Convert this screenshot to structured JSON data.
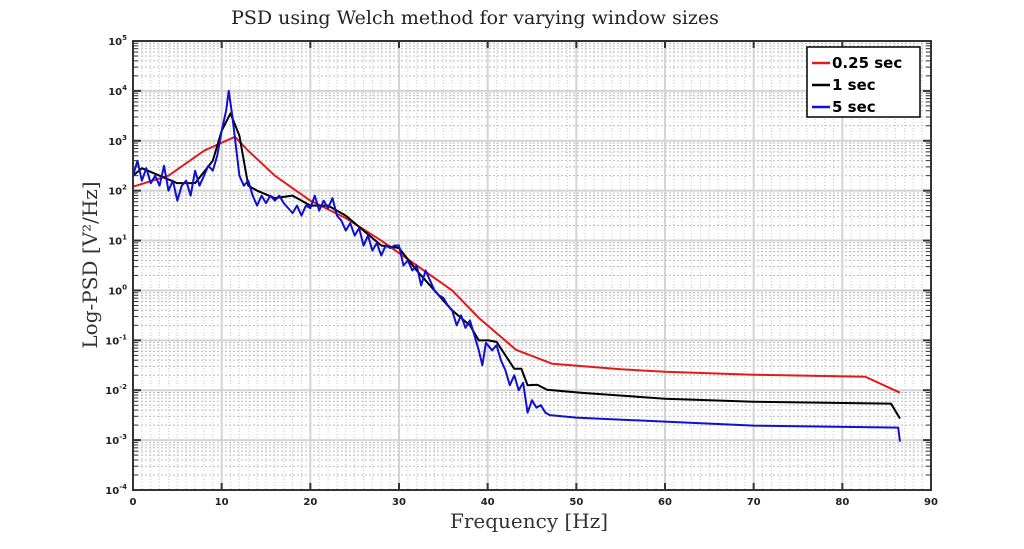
{
  "chart_data": {
    "type": "line",
    "title": "PSD using Welch method for varying window sizes",
    "xlabel": "Frequency [Hz]",
    "ylabel": "Log-PSD [V²/Hz]",
    "xlim": [
      0,
      90
    ],
    "ylim_log10": [
      -4,
      5
    ],
    "y_scale": "log",
    "grid": true,
    "legend_position": "top-right",
    "x_ticks": [
      "0",
      "10",
      "20",
      "30",
      "40",
      "50",
      "60",
      "70",
      "80",
      "90"
    ],
    "y_ticks": [
      {
        "base": "10",
        "exp": "-4"
      },
      {
        "base": "10",
        "exp": "-3"
      },
      {
        "base": "10",
        "exp": "-2"
      },
      {
        "base": "10",
        "exp": "-1"
      },
      {
        "base": "10",
        "exp": "0"
      },
      {
        "base": "10",
        "exp": "1"
      },
      {
        "base": "10",
        "exp": "2"
      },
      {
        "base": "10",
        "exp": "3"
      },
      {
        "base": "10",
        "exp": "4"
      },
      {
        "base": "10",
        "exp": "5"
      }
    ],
    "series": [
      {
        "name": "0.25 sec",
        "color": "#e41a1a",
        "x": [
          0,
          4,
          8,
          11.5,
          13,
          16,
          20,
          24,
          28,
          32,
          36,
          39,
          43.2,
          47.3,
          55,
          60,
          70,
          82.6,
          86.5
        ],
        "log10_y": [
          2.08,
          2.3,
          2.8,
          3.08,
          2.8,
          2.3,
          1.8,
          1.45,
          1.0,
          0.5,
          0.0,
          -0.55,
          -1.19,
          -1.47,
          -1.58,
          -1.63,
          -1.69,
          -1.73,
          -2.05
        ]
      },
      {
        "name": "1 sec",
        "color": "#000000",
        "x": [
          0,
          1,
          3,
          5,
          7,
          9,
          10,
          11,
          12,
          13,
          14,
          16,
          18,
          20,
          22,
          24,
          26,
          28,
          30,
          32,
          34,
          36,
          38,
          39,
          40.1,
          41,
          43,
          43.8,
          44.5,
          45.6,
          46.7,
          50.5,
          60,
          70,
          85.5,
          86.5
        ],
        "log10_y": [
          2.3,
          2.45,
          2.3,
          2.15,
          2.15,
          2.6,
          3.2,
          3.55,
          3.1,
          2.1,
          2.0,
          1.85,
          1.9,
          1.7,
          1.7,
          1.5,
          1.2,
          0.9,
          0.85,
          0.4,
          0.0,
          -0.4,
          -0.7,
          -1.0,
          -1.0,
          -1.03,
          -1.57,
          -1.57,
          -1.9,
          -1.89,
          -1.99,
          -2.05,
          -2.17,
          -2.23,
          -2.27,
          -2.57
        ]
      },
      {
        "name": "5 sec",
        "color": "#1010d0",
        "x": [
          0,
          0.5,
          1,
          1.5,
          2,
          2.5,
          3,
          3.5,
          4,
          4.5,
          5,
          5.5,
          6,
          6.5,
          7,
          7.5,
          8,
          8.5,
          9,
          9.5,
          10,
          10.5,
          10.8,
          11.2,
          11.6,
          12,
          12.5,
          13,
          13.5,
          14,
          14.5,
          15,
          15.5,
          16,
          16.5,
          17,
          18,
          18.5,
          19,
          19.5,
          20,
          20.5,
          21,
          21.5,
          22,
          22.5,
          23,
          23.5,
          24,
          24.5,
          25,
          25.5,
          26,
          26.5,
          27,
          27.5,
          28,
          28.5,
          29,
          29.5,
          30,
          30.5,
          31,
          31.5,
          32,
          32.5,
          33,
          33.5,
          34,
          34.5,
          35,
          35.5,
          36,
          36.5,
          37,
          37.5,
          38,
          38.5,
          39,
          39.4,
          39.8,
          40.5,
          41,
          41.5,
          42,
          42.5,
          43,
          43.5,
          44,
          44.5,
          45,
          45.5,
          46,
          46.5,
          47,
          50,
          60,
          70,
          86.3,
          86.5
        ],
        "log10_y": [
          2.3,
          2.6,
          2.2,
          2.45,
          2.15,
          2.3,
          2.1,
          2.5,
          2.0,
          2.2,
          1.8,
          2.1,
          2.2,
          1.9,
          2.4,
          2.1,
          2.3,
          2.5,
          2.4,
          2.7,
          3.2,
          3.6,
          4.0,
          3.5,
          2.9,
          2.3,
          2.1,
          2.2,
          1.9,
          1.7,
          1.9,
          1.75,
          1.9,
          1.8,
          1.9,
          1.75,
          1.55,
          1.7,
          1.5,
          1.7,
          1.65,
          1.9,
          1.6,
          1.8,
          1.65,
          1.85,
          1.5,
          1.4,
          1.2,
          1.35,
          1.1,
          1.25,
          0.9,
          1.1,
          0.8,
          0.95,
          0.7,
          0.9,
          0.85,
          0.9,
          0.9,
          0.5,
          0.6,
          0.4,
          0.5,
          0.1,
          0.4,
          0.2,
          0.0,
          -0.1,
          -0.15,
          -0.3,
          -0.4,
          -0.7,
          -0.5,
          -0.75,
          -0.6,
          -0.9,
          -1.2,
          -1.5,
          -1.05,
          -1.2,
          -1.1,
          -1.4,
          -1.6,
          -1.9,
          -1.7,
          -2.0,
          -1.85,
          -2.45,
          -2.2,
          -2.35,
          -2.3,
          -2.45,
          -2.5,
          -2.55,
          -2.63,
          -2.71,
          -2.75,
          -3.03
        ]
      }
    ]
  }
}
